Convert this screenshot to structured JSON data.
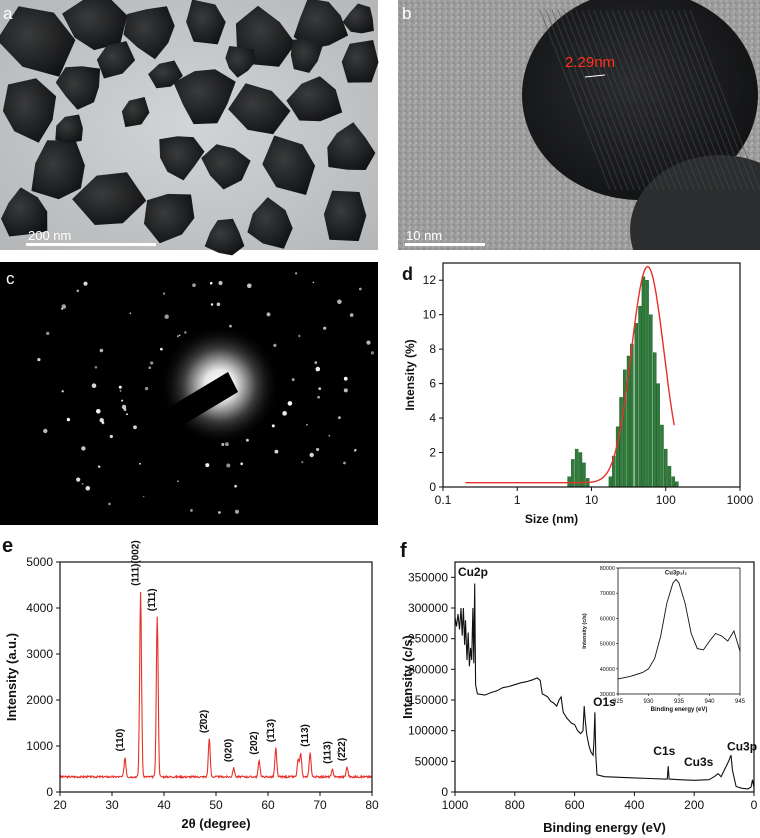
{
  "panels": {
    "a": {
      "letter": "a",
      "scale_label": "200 nm"
    },
    "b": {
      "letter": "b",
      "scale_label": "10 nm",
      "lattice_label": "2.29nm"
    },
    "c": {
      "letter": "c"
    },
    "d": {
      "letter": "d"
    },
    "e": {
      "letter": "e"
    },
    "f": {
      "letter": "f"
    }
  },
  "chart_data": [
    {
      "id": "d",
      "type": "bar",
      "xlabel": "Size (nm)",
      "ylabel": "Intensity (%)",
      "xscale": "log",
      "xlim": [
        0.1,
        1000
      ],
      "ylim": [
        0,
        13
      ],
      "xticks": [
        "0.1",
        "1",
        "10",
        "100",
        "1000"
      ],
      "yticks": [
        "0",
        "2",
        "4",
        "6",
        "8",
        "10",
        "12"
      ],
      "bar_color": "#2e7d3a",
      "fit_color": "#e8302a",
      "bars": [
        {
          "x": 5.0,
          "y": 0.6
        },
        {
          "x": 5.6,
          "y": 1.6
        },
        {
          "x": 6.3,
          "y": 2.2
        },
        {
          "x": 7.1,
          "y": 2.0
        },
        {
          "x": 7.9,
          "y": 1.4
        },
        {
          "x": 8.9,
          "y": 0.5
        },
        {
          "x": 18,
          "y": 0.6
        },
        {
          "x": 20,
          "y": 1.8
        },
        {
          "x": 22.5,
          "y": 3.5
        },
        {
          "x": 25,
          "y": 5.2
        },
        {
          "x": 28,
          "y": 6.8
        },
        {
          "x": 31.5,
          "y": 7.6
        },
        {
          "x": 35,
          "y": 8.3
        },
        {
          "x": 40,
          "y": 9.5
        },
        {
          "x": 45,
          "y": 10.5
        },
        {
          "x": 50,
          "y": 12.2
        },
        {
          "x": 56,
          "y": 12.0
        },
        {
          "x": 63,
          "y": 10.0
        },
        {
          "x": 71,
          "y": 7.8
        },
        {
          "x": 79,
          "y": 6.0
        },
        {
          "x": 89,
          "y": 3.6
        },
        {
          "x": 100,
          "y": 2.2
        },
        {
          "x": 112,
          "y": 1.2
        },
        {
          "x": 126,
          "y": 0.6
        },
        {
          "x": 141,
          "y": 0.3
        }
      ],
      "fit": {
        "baseline": 0.25,
        "peak": 12.8,
        "center": 57,
        "sigma_log10": 0.22,
        "x_start": 0.2,
        "x_end": 130
      }
    },
    {
      "id": "e",
      "type": "line",
      "xlabel": "2θ (degree)",
      "ylabel": "Intensity (a.u.)",
      "xlim": [
        20,
        80
      ],
      "ylim": [
        0,
        5000
      ],
      "xticks": [
        "20",
        "30",
        "40",
        "50",
        "60",
        "70",
        "80"
      ],
      "yticks": [
        "0",
        "1000",
        "2000",
        "3000",
        "4000",
        "5000"
      ],
      "line_color": "#e8302a",
      "baseline": 330,
      "peaks": [
        {
          "x": 32.5,
          "y": 750,
          "label": "(110)"
        },
        {
          "x": 35.5,
          "y": 4350,
          "label": "(111)(002)"
        },
        {
          "x": 38.7,
          "y": 3800,
          "label": "(1̄11)"
        },
        {
          "x": 48.7,
          "y": 1150,
          "label": "(2̄02)"
        },
        {
          "x": 53.4,
          "y": 520,
          "label": "(020)"
        },
        {
          "x": 58.3,
          "y": 680,
          "label": "(202)"
        },
        {
          "x": 61.5,
          "y": 950,
          "label": "(1̄13)"
        },
        {
          "x": 65.8,
          "y": 700,
          "label": ""
        },
        {
          "x": 66.3,
          "y": 820,
          "label": ""
        },
        {
          "x": 68.1,
          "y": 850,
          "label": "(113)"
        },
        {
          "x": 72.4,
          "y": 480,
          "label": "(113)"
        },
        {
          "x": 75.2,
          "y": 540,
          "label": "(2̄22)"
        }
      ]
    },
    {
      "id": "f",
      "type": "line",
      "xlabel": "Binding energy (eV)",
      "ylabel": "Intensity (c/s)",
      "xlim": [
        1000,
        0
      ],
      "ylim": [
        0,
        375000
      ],
      "xticks": [
        "1000",
        "800",
        "600",
        "400",
        "200",
        "0"
      ],
      "yticks": [
        "0",
        "50000",
        "100000",
        "150000",
        "200000",
        "250000",
        "300000",
        "350000"
      ],
      "line_color": "#111111",
      "points": [
        [
          1000,
          285000
        ],
        [
          995,
          270000
        ],
        [
          990,
          290000
        ],
        [
          985,
          265000
        ],
        [
          980,
          300000
        ],
        [
          976,
          255000
        ],
        [
          972,
          300000
        ],
        [
          968,
          240000
        ],
        [
          965,
          280000
        ],
        [
          960,
          215000
        ],
        [
          956,
          260000
        ],
        [
          952,
          205000
        ],
        [
          948,
          235000
        ],
        [
          944,
          215000
        ],
        [
          940,
          300000
        ],
        [
          937,
          210000
        ],
        [
          934,
          340000
        ],
        [
          931,
          175000
        ],
        [
          925,
          160000
        ],
        [
          900,
          158000
        ],
        [
          880,
          162000
        ],
        [
          860,
          165000
        ],
        [
          840,
          170000
        ],
        [
          820,
          172000
        ],
        [
          800,
          175000
        ],
        [
          780,
          178000
        ],
        [
          760,
          180000
        ],
        [
          740,
          183000
        ],
        [
          725,
          186000
        ],
        [
          715,
          182000
        ],
        [
          708,
          160000
        ],
        [
          700,
          158000
        ],
        [
          690,
          155000
        ],
        [
          680,
          148000
        ],
        [
          670,
          145000
        ],
        [
          660,
          140000
        ],
        [
          652,
          150000
        ],
        [
          645,
          155000
        ],
        [
          638,
          130000
        ],
        [
          625,
          120000
        ],
        [
          610,
          112000
        ],
        [
          600,
          110000
        ],
        [
          590,
          100000
        ],
        [
          580,
          95000
        ],
        [
          572,
          100000
        ],
        [
          568,
          140000
        ],
        [
          565,
          120000
        ],
        [
          560,
          95000
        ],
        [
          552,
          75000
        ],
        [
          545,
          65000
        ],
        [
          538,
          60000
        ],
        [
          535,
          85000
        ],
        [
          532,
          130000
        ],
        [
          529,
          60000
        ],
        [
          525,
          28000
        ],
        [
          500,
          25000
        ],
        [
          450,
          24000
        ],
        [
          400,
          23000
        ],
        [
          350,
          22000
        ],
        [
          300,
          21000
        ],
        [
          290,
          21000
        ],
        [
          287,
          42000
        ],
        [
          284,
          21000
        ],
        [
          250,
          20000
        ],
        [
          200,
          19000
        ],
        [
          150,
          20000
        ],
        [
          130,
          26000
        ],
        [
          120,
          30000
        ],
        [
          110,
          25000
        ],
        [
          100,
          35000
        ],
        [
          85,
          50000
        ],
        [
          77,
          60000
        ],
        [
          72,
          35000
        ],
        [
          60,
          9000
        ],
        [
          40,
          6000
        ],
        [
          20,
          5000
        ],
        [
          10,
          8000
        ],
        [
          5,
          20000
        ],
        [
          2,
          12000
        ],
        [
          0,
          8000
        ]
      ],
      "annotations": [
        {
          "label": "Cu2p",
          "x": 940,
          "y": 352000
        },
        {
          "label": "O1s",
          "x": 500,
          "y": 140000
        },
        {
          "label": "C1s",
          "x": 300,
          "y": 60000
        },
        {
          "label": "Cu3s",
          "x": 185,
          "y": 42000
        },
        {
          "label": "Cu3p",
          "x": 40,
          "y": 68000
        }
      ],
      "inset": {
        "xlabel": "Binding energy (eV)",
        "ylabel": "Intensity (c/s)",
        "peak_label": "Cu3p₃/₂",
        "xlim": [
          925,
          945
        ],
        "ylim": [
          30000,
          80000
        ],
        "xticks": [
          "925",
          "930",
          "935",
          "940",
          "945"
        ],
        "yticks": [
          "30000",
          "40000",
          "50000",
          "60000",
          "70000",
          "80000"
        ],
        "points": [
          [
            925,
            36000
          ],
          [
            927,
            37000
          ],
          [
            929,
            38500
          ],
          [
            930,
            40000
          ],
          [
            931,
            44000
          ],
          [
            932,
            53000
          ],
          [
            933,
            66000
          ],
          [
            934,
            74000
          ],
          [
            934.5,
            75500
          ],
          [
            935,
            74000
          ],
          [
            936,
            66000
          ],
          [
            937,
            54000
          ],
          [
            938,
            48000
          ],
          [
            939,
            47500
          ],
          [
            940,
            51000
          ],
          [
            941,
            54000
          ],
          [
            942,
            53000
          ],
          [
            943,
            51000
          ],
          [
            944,
            55000
          ],
          [
            945,
            47000
          ]
        ]
      }
    }
  ]
}
